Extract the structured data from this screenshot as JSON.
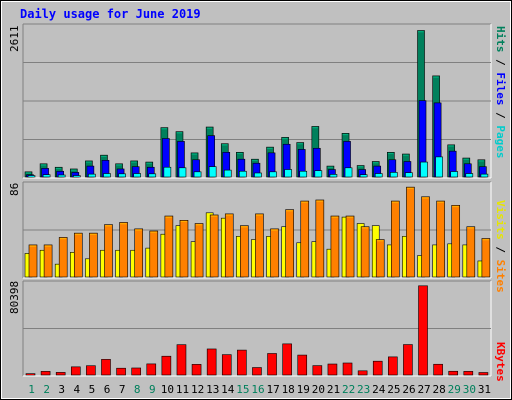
{
  "chart_data": [
    {
      "type": "bar",
      "panel": "pages-files-hits",
      "title": "Daily usage for June 2019",
      "ylabel_max": "2611",
      "ymax": 2611,
      "right_labels": [
        "Hits",
        "Files",
        "Pages"
      ],
      "categories": [
        "1",
        "2",
        "3",
        "4",
        "5",
        "6",
        "7",
        "8",
        "9",
        "10",
        "11",
        "12",
        "13",
        "14",
        "15",
        "16",
        "17",
        "18",
        "19",
        "20",
        "21",
        "22",
        "23",
        "24",
        "25",
        "26",
        "27",
        "28",
        "29",
        "30",
        "31"
      ],
      "series": [
        {
          "name": "Hits",
          "color": "#00805c",
          "values": [
            90,
            230,
            170,
            140,
            280,
            380,
            230,
            280,
            260,
            860,
            790,
            420,
            870,
            580,
            430,
            310,
            520,
            690,
            600,
            880,
            190,
            760,
            200,
            270,
            430,
            400,
            2550,
            1760,
            560,
            330,
            300
          ]
        },
        {
          "name": "Files",
          "color": "#0000ff",
          "values": [
            40,
            150,
            100,
            80,
            190,
            290,
            140,
            180,
            170,
            670,
            620,
            300,
            720,
            430,
            310,
            240,
            420,
            570,
            480,
            500,
            130,
            620,
            130,
            190,
            300,
            270,
            1330,
            1290,
            450,
            230,
            180
          ]
        },
        {
          "name": "Pages",
          "color": "#00ffff",
          "values": [
            25,
            40,
            35,
            25,
            50,
            60,
            55,
            60,
            55,
            170,
            160,
            90,
            180,
            120,
            100,
            70,
            90,
            130,
            100,
            110,
            45,
            160,
            40,
            60,
            80,
            75,
            260,
            350,
            95,
            60,
            50
          ]
        }
      ]
    },
    {
      "type": "bar",
      "panel": "visits-sites",
      "ylabel_max": "86",
      "ymax": 86,
      "right_labels": [
        "Visits",
        "Sites"
      ],
      "categories": [
        "1",
        "2",
        "3",
        "4",
        "5",
        "6",
        "7",
        "8",
        "9",
        "10",
        "11",
        "12",
        "13",
        "14",
        "15",
        "16",
        "17",
        "18",
        "19",
        "20",
        "21",
        "22",
        "23",
        "24",
        "25",
        "26",
        "27",
        "28",
        "29",
        "30",
        "31"
      ],
      "series": [
        {
          "name": "Visits",
          "color": "#ffff00",
          "values": [
            22,
            25,
            12,
            23,
            17,
            25,
            25,
            25,
            27,
            40,
            48,
            33,
            60,
            55,
            38,
            35,
            38,
            47,
            32,
            33,
            26,
            56,
            50,
            48,
            30,
            38,
            20,
            30,
            31,
            30,
            15
          ]
        },
        {
          "name": "Sites",
          "color": "#ff8000",
          "values": [
            30,
            30,
            37,
            41,
            41,
            49,
            51,
            45,
            43,
            57,
            53,
            50,
            58,
            59,
            48,
            59,
            45,
            63,
            71,
            72,
            57,
            57,
            47,
            35,
            71,
            84,
            75,
            71,
            67,
            47,
            36
          ]
        }
      ]
    },
    {
      "type": "bar",
      "panel": "kbytes",
      "ylabel_max": "80398",
      "ymax": 80398,
      "right_labels": [
        "KBytes"
      ],
      "categories": [
        "1",
        "2",
        "3",
        "4",
        "5",
        "6",
        "7",
        "8",
        "9",
        "10",
        "11",
        "12",
        "13",
        "14",
        "15",
        "16",
        "17",
        "18",
        "19",
        "20",
        "21",
        "22",
        "23",
        "24",
        "25",
        "26",
        "27",
        "28",
        "29",
        "30",
        "31"
      ],
      "series": [
        {
          "name": "KBytes",
          "color": "#ff0000",
          "values": [
            1200,
            3200,
            2300,
            7200,
            8200,
            13800,
            6000,
            6200,
            9800,
            16600,
            26800,
            9400,
            23000,
            18000,
            22000,
            6600,
            19000,
            27500,
            17600,
            8300,
            9700,
            10600,
            3700,
            12200,
            16000,
            26900,
            78800,
            9500,
            3300,
            3200,
            2200
          ]
        }
      ]
    }
  ],
  "x_labels": [
    "1",
    "2",
    "3",
    "4",
    "5",
    "6",
    "7",
    "8",
    "9",
    "10",
    "11",
    "12",
    "13",
    "14",
    "15",
    "16",
    "17",
    "18",
    "19",
    "20",
    "21",
    "22",
    "23",
    "24",
    "25",
    "26",
    "27",
    "28",
    "29",
    "30",
    "31"
  ],
  "weekend_days": [
    1,
    2,
    8,
    9,
    15,
    16,
    22,
    23,
    29,
    30
  ],
  "colors": {
    "title": "#0000ff",
    "plot_bg": "#c0c0c0",
    "outer_bg": "#c0c0c0",
    "grid": "#808080",
    "weekend_label": "#00805c",
    "weekday_label": "#000000"
  }
}
